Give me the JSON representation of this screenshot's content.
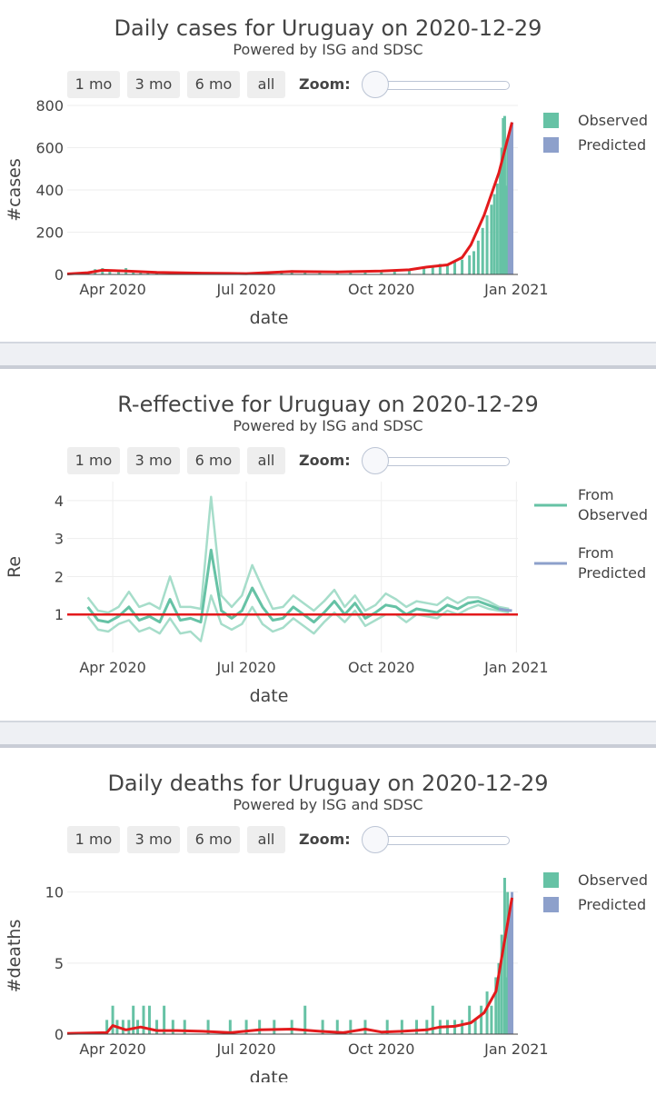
{
  "rangeButtons": [
    "1 mo",
    "3 mo",
    "6 mo",
    "all"
  ],
  "zoomLabel": "Zoom:",
  "colors": {
    "observed": "#66c2a5",
    "predicted": "#8da0cb",
    "fit": "#e31a1c",
    "band": "#a6ddca",
    "grid": "#eeeeee"
  },
  "chart_data": [
    {
      "type": "bar",
      "title": "Daily cases for Uruguay on 2020-12-29",
      "subtitle": "Powered by ISG and SDSC",
      "xlabel": "date",
      "ylabel": "#cases",
      "xrange": [
        "2020-03-01",
        "2021-01-02"
      ],
      "ylim": [
        0,
        800
      ],
      "yticks": [
        0,
        200,
        400,
        600,
        800
      ],
      "xticks": [
        {
          "date": "2020-04-01",
          "label": "Apr 2020"
        },
        {
          "date": "2020-07-01",
          "label": "Jul 2020"
        },
        {
          "date": "2020-10-01",
          "label": "Oct 2020"
        },
        {
          "date": "2021-01-01",
          "label": "Jan 2021"
        }
      ],
      "legend": {
        "placement": "top-right",
        "entries": [
          "Observed",
          "Predicted"
        ]
      },
      "series": [
        {
          "name": "Observed",
          "kind": "bar",
          "x": [
            "2020-03-15",
            "2020-03-20",
            "2020-03-25",
            "2020-03-30",
            "2020-04-05",
            "2020-04-10",
            "2020-04-15",
            "2020-04-20",
            "2020-04-25",
            "2020-05-01",
            "2020-05-10",
            "2020-05-20",
            "2020-06-01",
            "2020-06-15",
            "2020-06-25",
            "2020-07-05",
            "2020-07-15",
            "2020-07-25",
            "2020-08-01",
            "2020-08-10",
            "2020-08-20",
            "2020-09-01",
            "2020-09-10",
            "2020-09-20",
            "2020-10-01",
            "2020-10-10",
            "2020-10-20",
            "2020-10-30",
            "2020-11-05",
            "2020-11-10",
            "2020-11-15",
            "2020-11-20",
            "2020-11-25",
            "2020-11-30",
            "2020-12-03",
            "2020-12-06",
            "2020-12-09",
            "2020-12-12",
            "2020-12-15",
            "2020-12-17",
            "2020-12-19",
            "2020-12-21",
            "2020-12-22",
            "2020-12-23",
            "2020-12-24",
            "2020-12-25",
            "2020-12-26"
          ],
          "y": [
            10,
            25,
            30,
            22,
            20,
            30,
            15,
            12,
            10,
            8,
            6,
            8,
            5,
            3,
            6,
            8,
            10,
            18,
            20,
            12,
            10,
            12,
            10,
            18,
            20,
            15,
            25,
            30,
            40,
            50,
            45,
            60,
            70,
            90,
            110,
            160,
            220,
            280,
            330,
            380,
            430,
            500,
            600,
            740,
            750,
            420,
            630
          ]
        },
        {
          "name": "Predicted",
          "kind": "bar",
          "x": [
            "2020-12-27",
            "2020-12-28",
            "2020-12-29"
          ],
          "y": [
            650,
            700,
            720
          ]
        },
        {
          "name": "Fit",
          "kind": "line",
          "x": [
            "2020-03-01",
            "2020-03-15",
            "2020-03-25",
            "2020-04-10",
            "2020-05-01",
            "2020-06-01",
            "2020-07-01",
            "2020-08-01",
            "2020-09-01",
            "2020-10-01",
            "2020-10-20",
            "2020-11-01",
            "2020-11-15",
            "2020-11-25",
            "2020-12-01",
            "2020-12-10",
            "2020-12-20",
            "2020-12-29"
          ],
          "y": [
            2,
            8,
            20,
            16,
            10,
            6,
            4,
            14,
            12,
            16,
            22,
            35,
            45,
            80,
            140,
            280,
            480,
            720
          ]
        }
      ]
    },
    {
      "type": "line",
      "title": "R-effective for Uruguay on 2020-12-29",
      "subtitle": "Powered by ISG and SDSC",
      "xlabel": "date",
      "ylabel": "Re",
      "xrange": [
        "2020-03-01",
        "2021-01-02"
      ],
      "ylim": [
        0,
        4.5
      ],
      "yticks": [
        1,
        2,
        3,
        4
      ],
      "grid": true,
      "xticks": [
        {
          "date": "2020-04-01",
          "label": "Apr 2020"
        },
        {
          "date": "2020-07-01",
          "label": "Jul 2020"
        },
        {
          "date": "2020-10-01",
          "label": "Oct 2020"
        },
        {
          "date": "2021-01-01",
          "label": "Jan 2021"
        }
      ],
      "legend": {
        "placement": "top-right",
        "entries": [
          "From Observed",
          "From Predicted"
        ]
      },
      "reference_line": 1,
      "x": [
        "2020-03-15",
        "2020-03-22",
        "2020-03-29",
        "2020-04-05",
        "2020-04-12",
        "2020-04-19",
        "2020-04-26",
        "2020-05-03",
        "2020-05-10",
        "2020-05-17",
        "2020-05-24",
        "2020-05-31",
        "2020-06-07",
        "2020-06-14",
        "2020-06-21",
        "2020-06-28",
        "2020-07-05",
        "2020-07-12",
        "2020-07-19",
        "2020-07-26",
        "2020-08-02",
        "2020-08-09",
        "2020-08-16",
        "2020-08-23",
        "2020-08-30",
        "2020-09-06",
        "2020-09-13",
        "2020-09-20",
        "2020-09-27",
        "2020-10-04",
        "2020-10-11",
        "2020-10-18",
        "2020-10-25",
        "2020-11-01",
        "2020-11-08",
        "2020-11-15",
        "2020-11-22",
        "2020-11-29",
        "2020-12-06",
        "2020-12-13",
        "2020-12-20",
        "2020-12-27"
      ],
      "series": [
        {
          "name": "From Observed",
          "kind": "line",
          "y": [
            1.2,
            0.85,
            0.8,
            0.95,
            1.2,
            0.85,
            0.95,
            0.8,
            1.4,
            0.85,
            0.9,
            0.8,
            2.7,
            1.1,
            0.9,
            1.1,
            1.7,
            1.2,
            0.85,
            0.9,
            1.2,
            1.0,
            0.8,
            1.05,
            1.35,
            1.0,
            1.3,
            0.9,
            1.05,
            1.25,
            1.2,
            1.0,
            1.15,
            1.1,
            1.05,
            1.25,
            1.15,
            1.3,
            1.35,
            1.25,
            1.15,
            1.1
          ]
        },
        {
          "name": "upper",
          "kind": "band",
          "y": [
            1.45,
            1.1,
            1.05,
            1.2,
            1.6,
            1.2,
            1.3,
            1.15,
            2.0,
            1.2,
            1.2,
            1.15,
            4.1,
            1.5,
            1.2,
            1.5,
            2.3,
            1.7,
            1.15,
            1.2,
            1.5,
            1.3,
            1.1,
            1.35,
            1.65,
            1.2,
            1.5,
            1.1,
            1.25,
            1.55,
            1.4,
            1.2,
            1.35,
            1.3,
            1.25,
            1.45,
            1.3,
            1.45,
            1.45,
            1.35,
            1.2,
            1.15
          ]
        },
        {
          "name": "lower",
          "kind": "band",
          "y": [
            0.95,
            0.6,
            0.55,
            0.75,
            0.85,
            0.55,
            0.65,
            0.5,
            0.9,
            0.5,
            0.55,
            0.3,
            1.5,
            0.75,
            0.6,
            0.75,
            1.2,
            0.75,
            0.55,
            0.65,
            0.9,
            0.7,
            0.5,
            0.8,
            1.05,
            0.8,
            1.1,
            0.7,
            0.85,
            1.0,
            1.0,
            0.8,
            1.0,
            0.95,
            0.9,
            1.1,
            1.0,
            1.15,
            1.25,
            1.15,
            1.1,
            1.05
          ]
        },
        {
          "name": "From Predicted",
          "kind": "line",
          "x": [
            "2020-12-20",
            "2020-12-24",
            "2020-12-29"
          ],
          "y": [
            1.15,
            1.12,
            1.1
          ]
        }
      ]
    },
    {
      "type": "bar",
      "title": "Daily deaths for Uruguay on 2020-12-29",
      "subtitle": "Powered by ISG and SDSC",
      "xlabel": "date",
      "ylabel": "#deaths",
      "xrange": [
        "2020-03-01",
        "2021-01-02"
      ],
      "ylim": [
        0,
        11
      ],
      "yticks": [
        0,
        5,
        10
      ],
      "xticks": [
        {
          "date": "2020-04-01",
          "label": "Apr 2020"
        },
        {
          "date": "2020-07-01",
          "label": "Jul 2020"
        },
        {
          "date": "2020-10-01",
          "label": "Oct 2020"
        },
        {
          "date": "2021-01-01",
          "label": "Jan 2021"
        }
      ],
      "legend": {
        "placement": "top-right",
        "entries": [
          "Observed",
          "Predicted"
        ]
      },
      "series": [
        {
          "name": "Observed",
          "kind": "bar",
          "x": [
            "2020-03-28",
            "2020-04-01",
            "2020-04-04",
            "2020-04-08",
            "2020-04-12",
            "2020-04-15",
            "2020-04-18",
            "2020-04-22",
            "2020-04-26",
            "2020-05-01",
            "2020-05-06",
            "2020-05-12",
            "2020-05-20",
            "2020-06-05",
            "2020-06-20",
            "2020-07-01",
            "2020-07-10",
            "2020-07-20",
            "2020-08-01",
            "2020-08-10",
            "2020-08-22",
            "2020-09-01",
            "2020-09-10",
            "2020-09-20",
            "2020-10-05",
            "2020-10-15",
            "2020-10-25",
            "2020-11-01",
            "2020-11-05",
            "2020-11-10",
            "2020-11-15",
            "2020-11-20",
            "2020-11-25",
            "2020-11-30",
            "2020-12-04",
            "2020-12-08",
            "2020-12-12",
            "2020-12-15",
            "2020-12-18",
            "2020-12-20",
            "2020-12-22",
            "2020-12-24",
            "2020-12-25",
            "2020-12-26"
          ],
          "y": [
            1,
            2,
            1,
            1,
            1,
            2,
            1,
            2,
            2,
            1,
            2,
            1,
            1,
            1,
            1,
            1,
            1,
            1,
            1,
            2,
            1,
            1,
            1,
            1,
            1,
            1,
            1,
            1,
            2,
            1,
            1,
            1,
            1,
            2,
            1,
            2,
            3,
            2,
            4,
            5,
            7,
            11,
            4,
            10
          ]
        },
        {
          "name": "Predicted",
          "kind": "bar",
          "x": [
            "2020-12-27",
            "2020-12-28",
            "2020-12-29"
          ],
          "y": [
            8,
            9,
            10
          ]
        },
        {
          "name": "Fit",
          "kind": "line",
          "x": [
            "2020-03-01",
            "2020-03-28",
            "2020-04-01",
            "2020-04-10",
            "2020-04-20",
            "2020-05-01",
            "2020-05-15",
            "2020-06-01",
            "2020-06-20",
            "2020-07-10",
            "2020-08-01",
            "2020-08-20",
            "2020-09-05",
            "2020-09-20",
            "2020-10-01",
            "2020-10-15",
            "2020-11-01",
            "2020-11-10",
            "2020-11-20",
            "2020-12-01",
            "2020-12-10",
            "2020-12-18",
            "2020-12-29"
          ],
          "y": [
            0.05,
            0.1,
            0.6,
            0.3,
            0.5,
            0.25,
            0.25,
            0.2,
            0.1,
            0.3,
            0.35,
            0.2,
            0.1,
            0.35,
            0.15,
            0.2,
            0.3,
            0.5,
            0.55,
            0.8,
            1.5,
            3.0,
            9.6
          ]
        }
      ]
    }
  ]
}
